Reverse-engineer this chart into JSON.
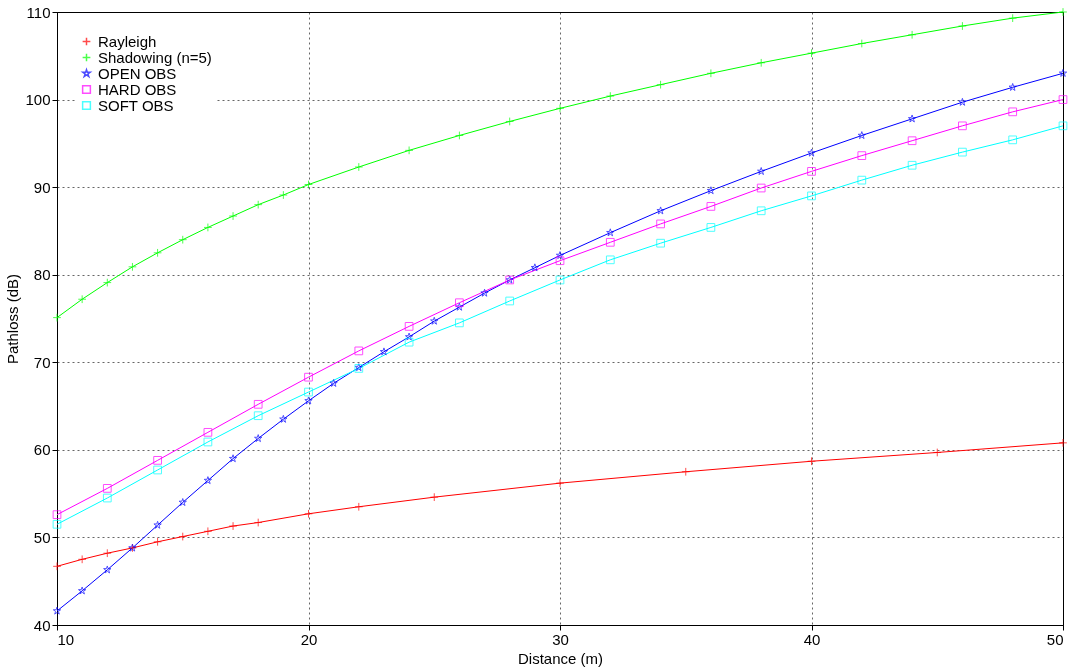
{
  "chart_data": {
    "type": "line",
    "xlabel": "Distance (m)",
    "ylabel": "Pathloss (dB)",
    "xlim": [
      10,
      50
    ],
    "ylim": [
      40,
      110
    ],
    "xticks": [
      10,
      20,
      30,
      40,
      50
    ],
    "yticks": [
      40,
      50,
      60,
      70,
      80,
      90,
      100,
      110
    ],
    "grid": true,
    "legend": "top left",
    "line_style": "solid",
    "series": [
      {
        "name": "Rayleigh",
        "color": "#ff0000",
        "marker": "cross",
        "x": [
          10,
          11,
          12,
          13,
          14,
          15,
          16,
          17,
          18,
          20,
          22,
          25,
          30,
          35,
          40,
          45,
          50
        ],
        "values": [
          46.7,
          47.5,
          48.2,
          48.8,
          49.5,
          50.1,
          50.7,
          51.3,
          51.7,
          52.7,
          53.5,
          54.6,
          56.2,
          57.5,
          58.7,
          59.7,
          60.8
        ]
      },
      {
        "name": "Shadowing (n=5)",
        "color": "#00ff00",
        "marker": "cross",
        "x": [
          10,
          11,
          12,
          13,
          14,
          15,
          16,
          17,
          18,
          19,
          20,
          22,
          24,
          26,
          28,
          30,
          32,
          34,
          36,
          38,
          40,
          42,
          44,
          46,
          48,
          50
        ],
        "values": [
          75.1,
          77.2,
          79.1,
          80.9,
          82.5,
          84.0,
          85.4,
          86.7,
          88.0,
          89.1,
          90.3,
          92.3,
          94.2,
          95.9,
          97.5,
          99.0,
          100.4,
          101.7,
          103.0,
          104.2,
          105.3,
          106.4,
          107.4,
          108.4,
          109.3,
          110.0
        ]
      },
      {
        "name": "OPEN OBS",
        "color": "#0000ff",
        "marker": "star",
        "x": [
          10,
          11,
          12,
          13,
          14,
          15,
          16,
          17,
          18,
          19,
          20,
          21,
          22,
          23,
          24,
          25,
          26,
          27,
          28,
          29,
          30,
          32,
          34,
          36,
          38,
          40,
          42,
          44,
          46,
          48,
          50
        ],
        "values": [
          41.6,
          43.9,
          46.3,
          48.8,
          51.4,
          54.0,
          56.5,
          59.0,
          61.3,
          63.5,
          65.6,
          67.6,
          69.4,
          71.2,
          72.9,
          74.7,
          76.3,
          77.9,
          79.4,
          80.8,
          82.2,
          84.8,
          87.3,
          89.6,
          91.8,
          93.9,
          95.9,
          97.8,
          99.7,
          101.4,
          103.0
        ]
      },
      {
        "name": "HARD OBS",
        "color": "#ff00ff",
        "marker": "square",
        "x": [
          10,
          12,
          14,
          16,
          18,
          20,
          22,
          24,
          26,
          28,
          30,
          32,
          34,
          36,
          38,
          40,
          42,
          44,
          46,
          48,
          50
        ],
        "values": [
          52.6,
          55.6,
          58.8,
          62.0,
          65.2,
          68.3,
          71.3,
          74.1,
          76.8,
          79.4,
          81.6,
          83.7,
          85.8,
          87.8,
          89.9,
          91.8,
          93.6,
          95.3,
          97.0,
          98.6,
          100.0
        ]
      },
      {
        "name": "SOFT OBS",
        "color": "#00ffff",
        "marker": "square",
        "x": [
          10,
          12,
          14,
          16,
          18,
          20,
          22,
          24,
          26,
          28,
          30,
          32,
          34,
          36,
          38,
          40,
          42,
          44,
          46,
          48,
          50
        ],
        "values": [
          51.5,
          54.5,
          57.7,
          60.9,
          63.9,
          66.6,
          69.3,
          72.3,
          74.5,
          77.0,
          79.4,
          81.7,
          83.6,
          85.4,
          87.3,
          89.0,
          90.8,
          92.5,
          94.0,
          95.4,
          97.0
        ]
      }
    ]
  }
}
